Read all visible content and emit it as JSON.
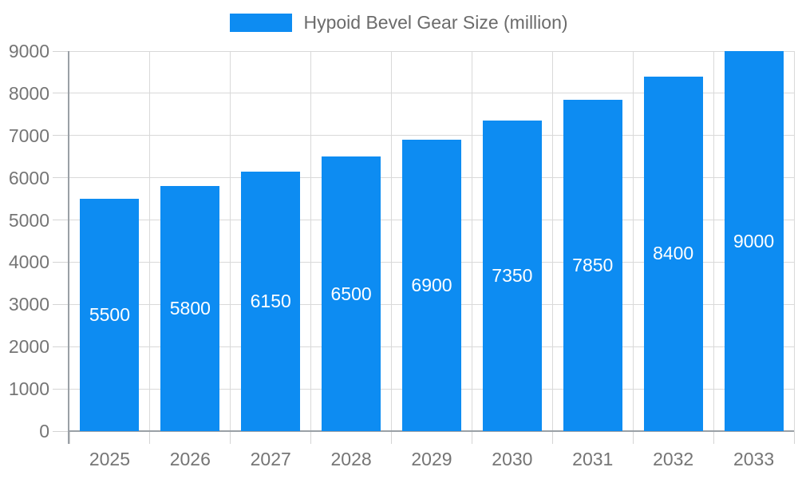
{
  "chart_data": {
    "type": "bar",
    "legend_label": "Hypoid Bevel Gear Size (million)",
    "categories": [
      "2025",
      "2026",
      "2027",
      "2028",
      "2029",
      "2030",
      "2031",
      "2032",
      "2033"
    ],
    "values": [
      5500,
      5800,
      6150,
      6500,
      6900,
      7350,
      7850,
      8400,
      9000
    ],
    "value_labels": [
      "5500",
      "5800",
      "6150",
      "6500",
      "6900",
      "7350",
      "7850",
      "8400",
      "9000"
    ],
    "ytick_labels": [
      "0",
      "1000",
      "2000",
      "3000",
      "4000",
      "5000",
      "6000",
      "7000",
      "8000",
      "9000"
    ],
    "ylim": [
      0,
      9000
    ],
    "ytick_step": 1000,
    "grid": true,
    "legend_position": "top-center",
    "bar_color": "#0d8cf2",
    "bar_label_color": "#ffffff",
    "gridline_color": "#d9d9d9",
    "axis_line_color": "#9aa0a6",
    "axis_text_color": "#757575",
    "legend_text_color": "#6b6b6b"
  }
}
